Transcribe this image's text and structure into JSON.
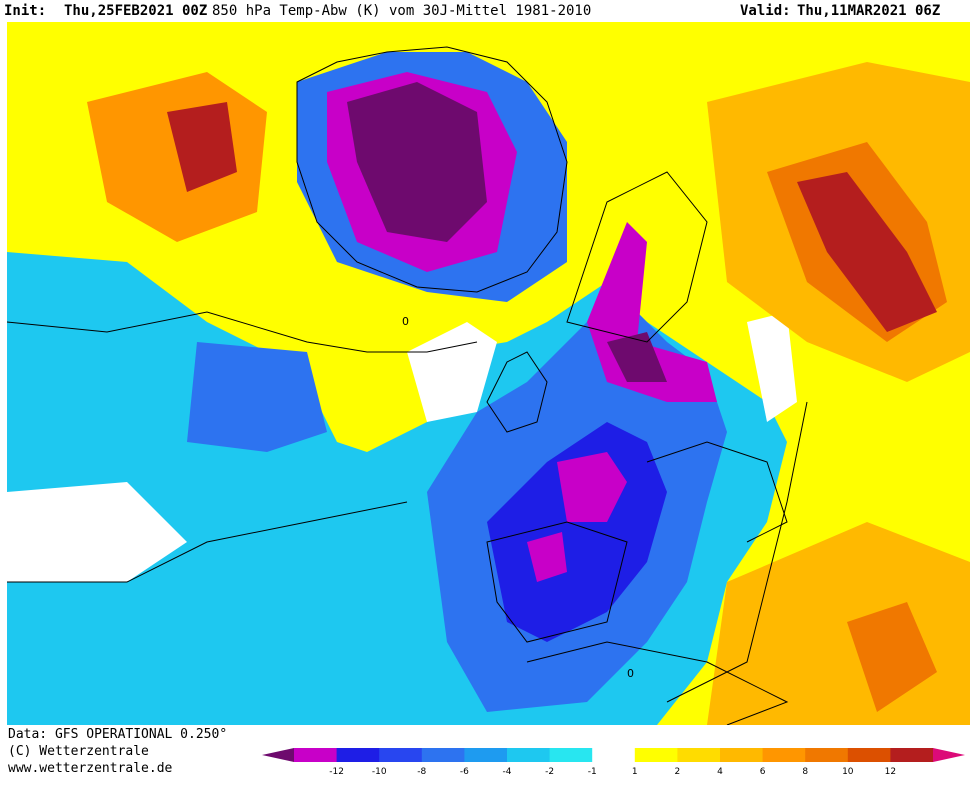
{
  "header": {
    "init_label": "Init:",
    "init_value": "Thu,25FEB2021 00Z",
    "parameter": "850 hPa Temp-Abw (K) vom 30J-Mittel 1981-2010",
    "valid_label": "Valid:",
    "valid_value": "Thu,11MAR2021 06Z"
  },
  "footer": {
    "data_source": "Data: GFS OPERATIONAL 0.250°",
    "copyright": "(C) Wetterzentrale",
    "website": "www.wetterzentrale.de"
  },
  "legend": {
    "colors": [
      "#ffffff",
      "#b30093",
      "#4d58f2",
      "#cccccc"
    ],
    "bins": [
      {
        "color": "#6e0a6e"
      },
      {
        "color": "#c800c8"
      },
      {
        "color": "#1e1ee6"
      },
      {
        "color": "#2846f0"
      },
      {
        "color": "#2d73f0"
      },
      {
        "color": "#1e9bf0"
      },
      {
        "color": "#1ec8f0"
      },
      {
        "color": "#28e6f0"
      },
      {
        "color": "#ffffff"
      },
      {
        "color": "#ffff00"
      },
      {
        "color": "#ffdc00"
      },
      {
        "color": "#ffb900"
      },
      {
        "color": "#ff9600"
      },
      {
        "color": "#f07800"
      },
      {
        "color": "#dc5000"
      },
      {
        "color": "#b41e1e"
      },
      {
        "color": "#dc0a78"
      }
    ],
    "labels": [
      "-12",
      "-10",
      "-8",
      "-6",
      "-4",
      "-2",
      "-1",
      "1",
      "2",
      "4",
      "6",
      "8",
      "10",
      "12"
    ]
  },
  "map": {
    "contour_label": "0"
  }
}
